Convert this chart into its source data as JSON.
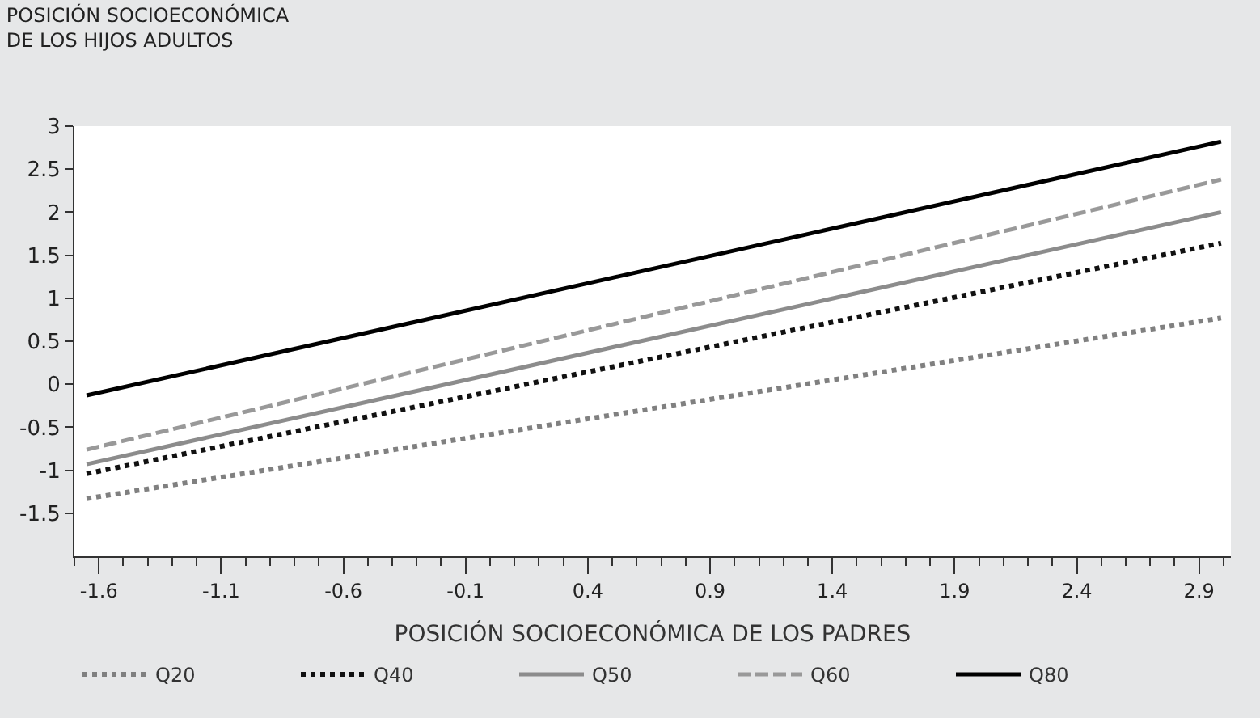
{
  "chart_data": {
    "type": "line",
    "title": "POSICIÓN SOCIOECONÓMICA\nDE LOS HIJOS ADULTOS",
    "xlabel": "POSICIÓN SOCIOECONÓMICA DE LOS PADRES",
    "x": [
      -1.65,
      2.99
    ],
    "xlim": [
      -1.7,
      3.03
    ],
    "xticks": [
      -1.6,
      -1.1,
      -0.6,
      -0.1,
      0.4,
      0.9,
      1.4,
      1.9,
      2.4,
      2.9
    ],
    "ylim": [
      -2,
      3
    ],
    "yticks": [
      -1.5,
      -1,
      -0.5,
      0,
      0.5,
      1,
      1.5,
      2,
      2.5,
      3
    ],
    "legend": "bottom",
    "marker": "none",
    "series": [
      {
        "name": "Q20",
        "color": "#808080",
        "line_style": "dotted",
        "values": [
          -1.33,
          0.77
        ]
      },
      {
        "name": "Q40",
        "color": "#111111",
        "line_style": "dotted",
        "values": [
          -1.04,
          1.64
        ]
      },
      {
        "name": "Q50",
        "color": "#8c8c8c",
        "line_style": "solid",
        "values": [
          -0.93,
          2.0
        ]
      },
      {
        "name": "Q60",
        "color": "#999999",
        "line_style": "dashed",
        "values": [
          -0.76,
          2.38
        ]
      },
      {
        "name": "Q80",
        "color": "#000000",
        "line_style": "solid",
        "values": [
          -0.13,
          2.82
        ]
      }
    ]
  }
}
